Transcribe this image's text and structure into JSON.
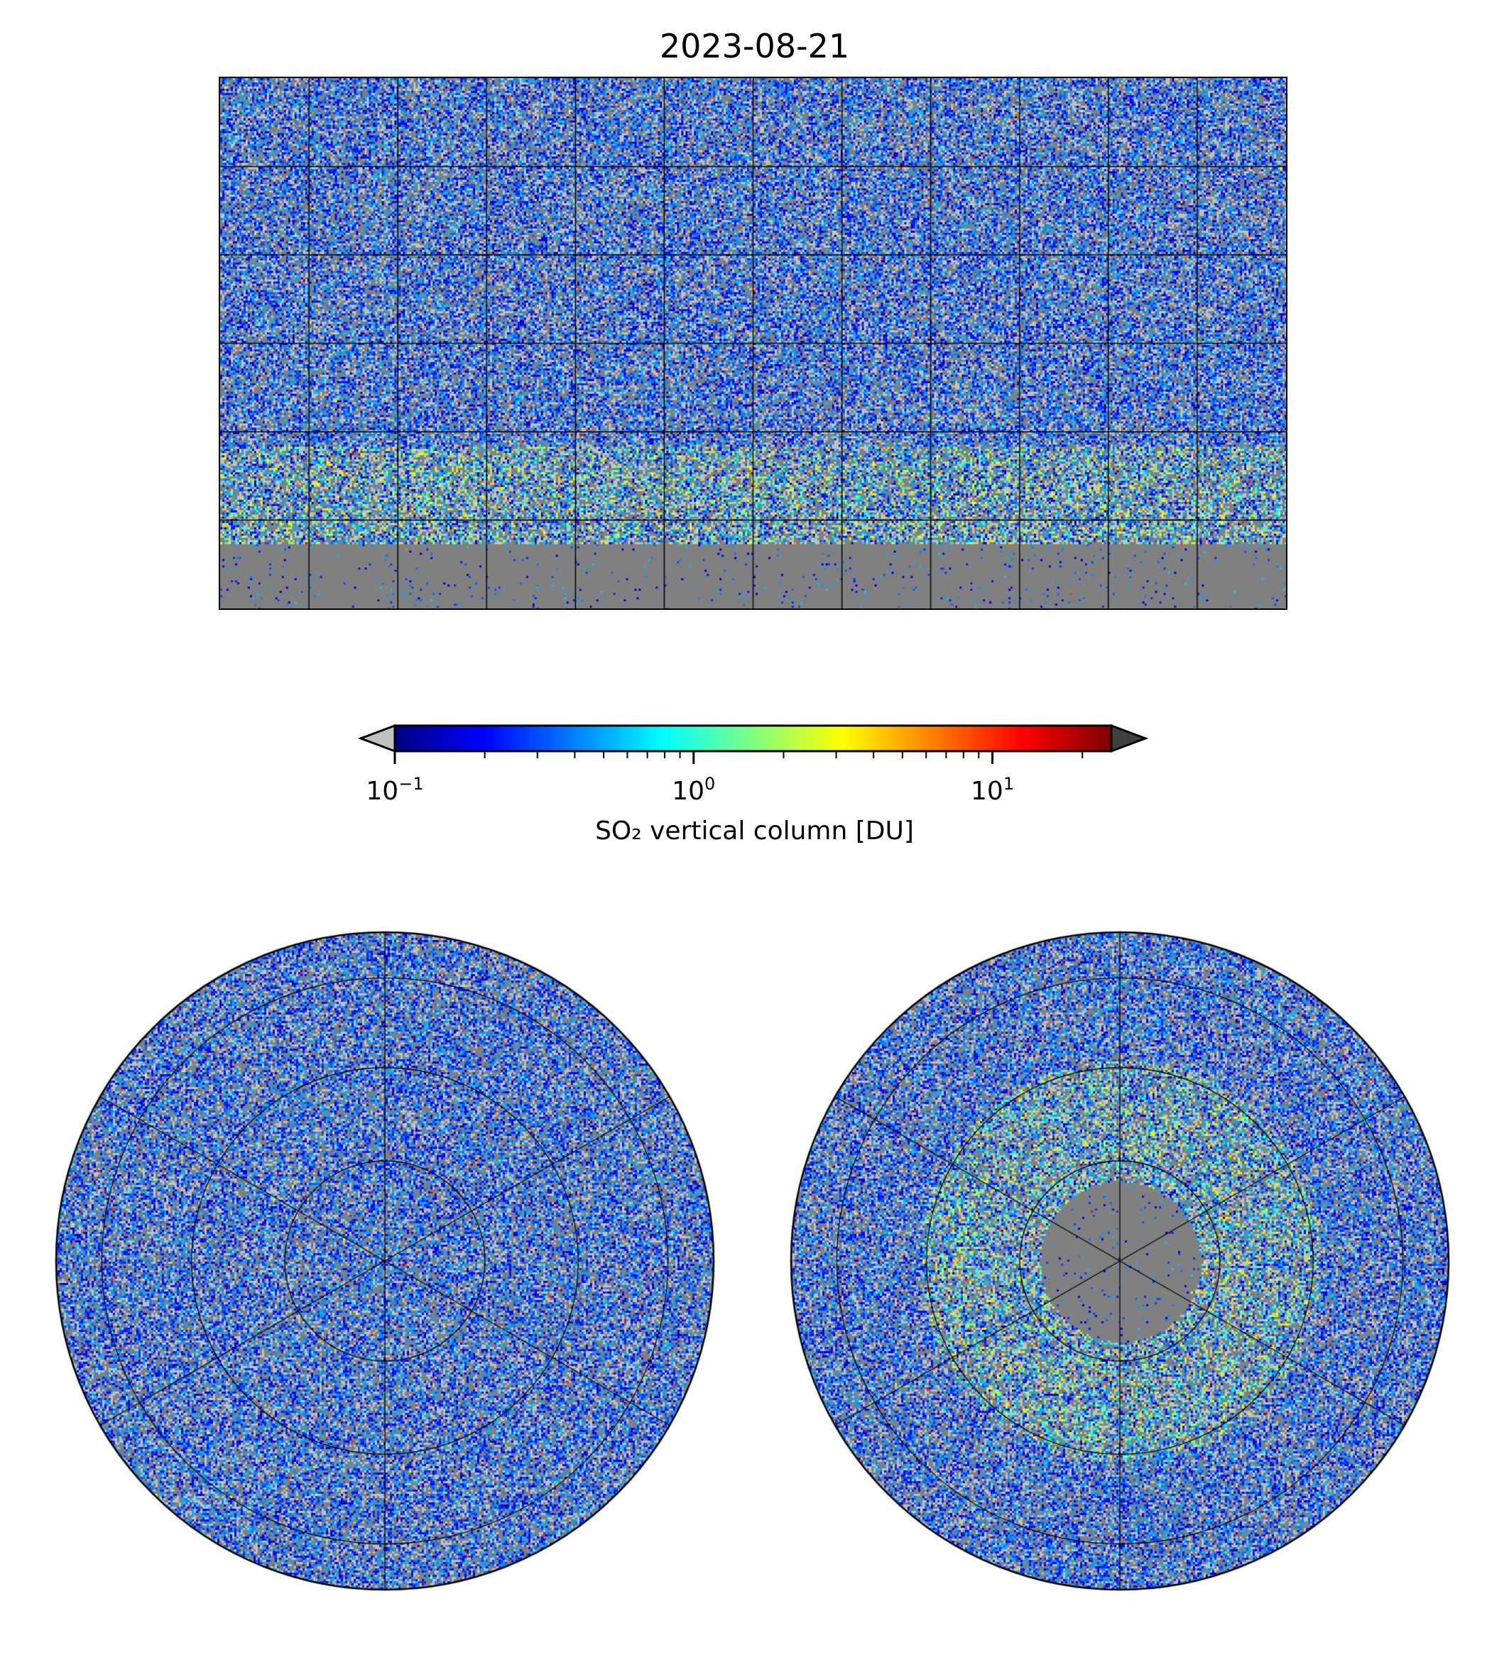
{
  "chart_data": {
    "type": "heatmap",
    "title": "2023-08-21",
    "panels": [
      {
        "name": "global",
        "projection": "plate-carree",
        "lon_range": [
          -180,
          180
        ],
        "lat_range": [
          -90,
          90
        ],
        "gridlines_deg": 30
      },
      {
        "name": "north-polar",
        "projection": "north-polar-stereo",
        "gridlines_deg": 30
      },
      {
        "name": "south-polar",
        "projection": "south-polar-stereo",
        "gridlines_deg": 30
      }
    ],
    "colorbar": {
      "label": "SO₂ vertical column [DU]",
      "scale": "log",
      "range": [
        0.1,
        25
      ],
      "colormap": "jet",
      "extend": "both",
      "under_color": "#c0c0c0",
      "over_color": "#404040",
      "ticks": [
        {
          "value": 0.1,
          "base": "10",
          "exp": "−1"
        },
        {
          "value": 1,
          "base": "10",
          "exp": "0"
        },
        {
          "value": 10,
          "base": "10",
          "exp": "1"
        }
      ]
    },
    "background_color": "#808080"
  }
}
